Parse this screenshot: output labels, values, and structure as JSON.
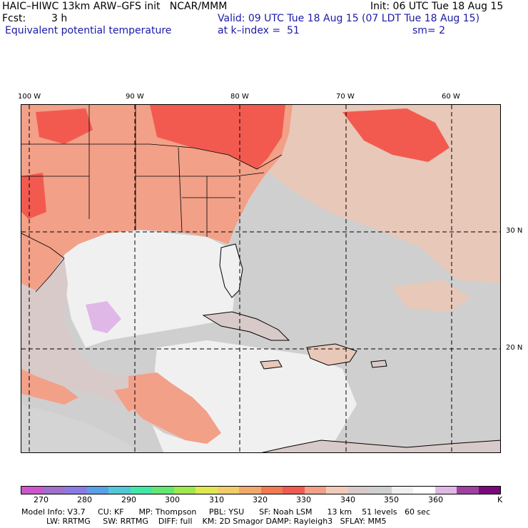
{
  "header": {
    "title_line": "HAIC–HIWC 13km ARW–GFS init   NCAR/MMM",
    "init_line": "Init: 06 UTC Tue 18 Aug 15",
    "fcst_label": "Fcst:",
    "fcst_value": "3 h",
    "valid_line": "Valid: 09 UTC Tue 18 Aug 15 (07 LDT Tue 18 Aug 15)",
    "field_name": "Equivalent potential temperature",
    "level_line": "at k–index =  51",
    "smooth_line": "sm= 2"
  },
  "map": {
    "lon_labels": [
      "100 W",
      "90 W",
      "80 W",
      "70 W",
      "60 W"
    ],
    "lat_labels": [
      "30 N",
      "20 N"
    ],
    "colors": {
      "land_default": "#e8c0aa",
      "ocean_light": "#f0f0f0",
      "ocean_mid": "#d4d4d4",
      "ocean_gray": "#c0bcbc",
      "warm": "#f2a088",
      "hot": "#f25a50",
      "lavender": "#e0b8e8",
      "outline": "#000000"
    }
  },
  "colorbar": {
    "colors": [
      "#cc55cc",
      "#a070cc",
      "#8a7ae8",
      "#5aa0e8",
      "#50c8d8",
      "#40e8a8",
      "#60e870",
      "#a0e850",
      "#e0e850",
      "#f2cc6a",
      "#f2a86a",
      "#f27a50",
      "#f25a50",
      "#f2a088",
      "#f2cab8",
      "#d8cac8",
      "#cfcfcf",
      "#f0f0f0",
      "#ffffff",
      "#e0b8e8",
      "#a040a0",
      "#7a0a7a"
    ],
    "labels": [
      "270",
      "280",
      "290",
      "300",
      "310",
      "320",
      "330",
      "340",
      "350",
      "360"
    ],
    "unit": "K"
  },
  "footer": {
    "line1": "Model Info: V3.7     CU: KF      MP: Thompson     PBL: YSU      SF: Noah LSM      13 km    51 levels   60 sec",
    "line2": "          LW: RRTMG     SW: RRTMG    DIFF: full    KM: 2D Smagor DAMP: Rayleigh3   SFLAY: MM5"
  }
}
